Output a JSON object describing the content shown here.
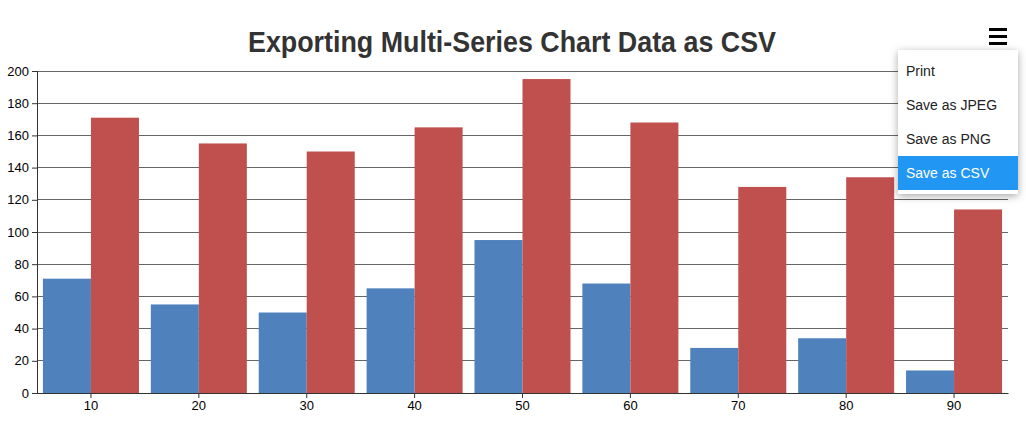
{
  "chart_data": {
    "type": "bar",
    "title": "Exporting Multi-Series Chart Data as CSV",
    "categories": [
      "10",
      "20",
      "30",
      "40",
      "50",
      "60",
      "70",
      "80",
      "90"
    ],
    "series": [
      {
        "color": "#4f81bc",
        "values": [
          71,
          55,
          50,
          65,
          95,
          68,
          28,
          34,
          14
        ]
      },
      {
        "color": "#c0504d",
        "values": [
          171,
          155,
          150,
          165,
          195,
          168,
          128,
          134,
          114
        ]
      }
    ],
    "ylim": [
      0,
      200
    ],
    "yticks": [
      0,
      20,
      40,
      60,
      80,
      100,
      120,
      140,
      160,
      180,
      200
    ],
    "grid": true
  },
  "menu": {
    "items": [
      "Print",
      "Save as JPEG",
      "Save as PNG",
      "Save as CSV"
    ]
  }
}
